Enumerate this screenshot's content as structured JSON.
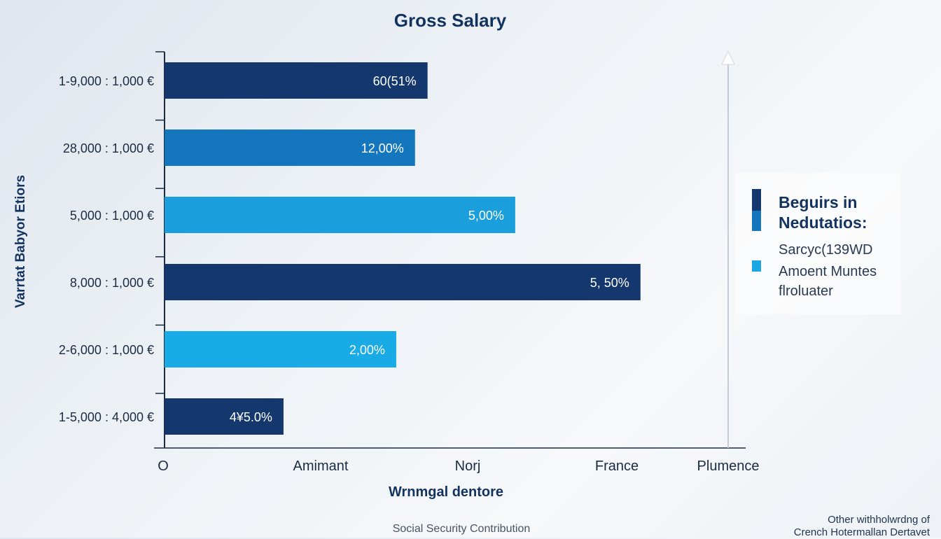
{
  "chart_data": {
    "type": "bar",
    "orientation": "horizontal",
    "title": "Gross Salary",
    "ylabel": "Varrtat Babyor Etiors",
    "xlabel": "Wrnmgal dentore",
    "categories": [
      "1-9,000 : 1,000 €",
      "28,000 : 1,000 €",
      "5,000 : 1,000 €",
      "8,000 : 1,000 €",
      "2-6,000 : 1,000 €",
      "1-5,000 : 4,000 €"
    ],
    "values": [
      2.1,
      2.0,
      2.8,
      3.8,
      1.85,
      0.95
    ],
    "data_labels": [
      "60(51%",
      "12,00%",
      "5,00%",
      "5, 50%",
      "2,00%",
      "4¥5.0%"
    ],
    "x_tick_labels": [
      "O",
      "Amimant",
      "Norj",
      "France",
      "Plumence"
    ],
    "xlim": [
      0,
      4.5
    ],
    "colors": [
      "#14386e",
      "#1477bd",
      "#1a9fdc",
      "#14386e",
      "#18abe6",
      "#14386e"
    ],
    "grid": false,
    "legend_position": "right"
  },
  "legend": {
    "heading_line1": "Beguirs in",
    "heading_line2": "Nedutatios:",
    "item1": "Sarcyc(139WD",
    "item2": "Amoent Muntes",
    "item3": "flroluater",
    "swatch_colors": [
      "#14386e",
      "#1477bd",
      "#1aa7e3"
    ]
  },
  "footer": {
    "center_text": "Social Security Contribution",
    "right_line1": "Other withholwrdng of",
    "right_line2": "Crench Hotermallan Dertavet"
  }
}
